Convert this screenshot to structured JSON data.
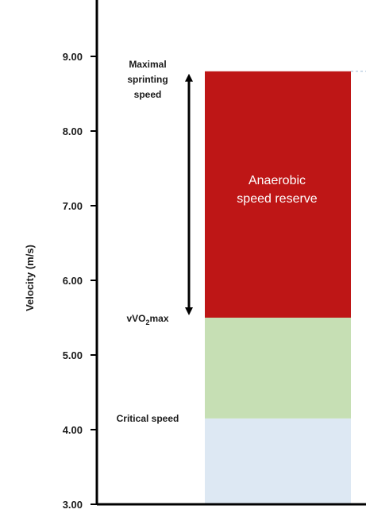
{
  "chart_data": {
    "type": "bar",
    "ylabel": "Velocity (m/s)",
    "ylim": [
      3,
      9.65
    ],
    "yticks": [
      "3.00",
      "4.00",
      "5.00",
      "6.00",
      "7.00",
      "8.00",
      "9.00"
    ],
    "ytick_values": [
      3,
      4,
      5,
      6,
      7,
      8,
      9
    ],
    "segments": [
      {
        "from": 3.0,
        "to": 4.15,
        "color": "#dde8f3"
      },
      {
        "from": 4.15,
        "to": 5.5,
        "color": "#c6dfb4"
      },
      {
        "from": 5.5,
        "to": 8.8,
        "color": "#be1616",
        "label_line1": "Anaerobic",
        "label_line2": "speed reserve"
      }
    ],
    "annotations": {
      "max_sprint": {
        "value": 8.8,
        "lines": [
          "Maximal",
          "sprinting",
          "speed"
        ]
      },
      "vvo2max": {
        "value": 5.5,
        "prefix": "vVO",
        "sub": "2",
        "suffix": "max"
      },
      "critical": {
        "value": 4.15,
        "text": "Critical speed"
      }
    },
    "arrow": {
      "from": 5.5,
      "to": 8.8
    },
    "grid": false,
    "legend": "none"
  }
}
